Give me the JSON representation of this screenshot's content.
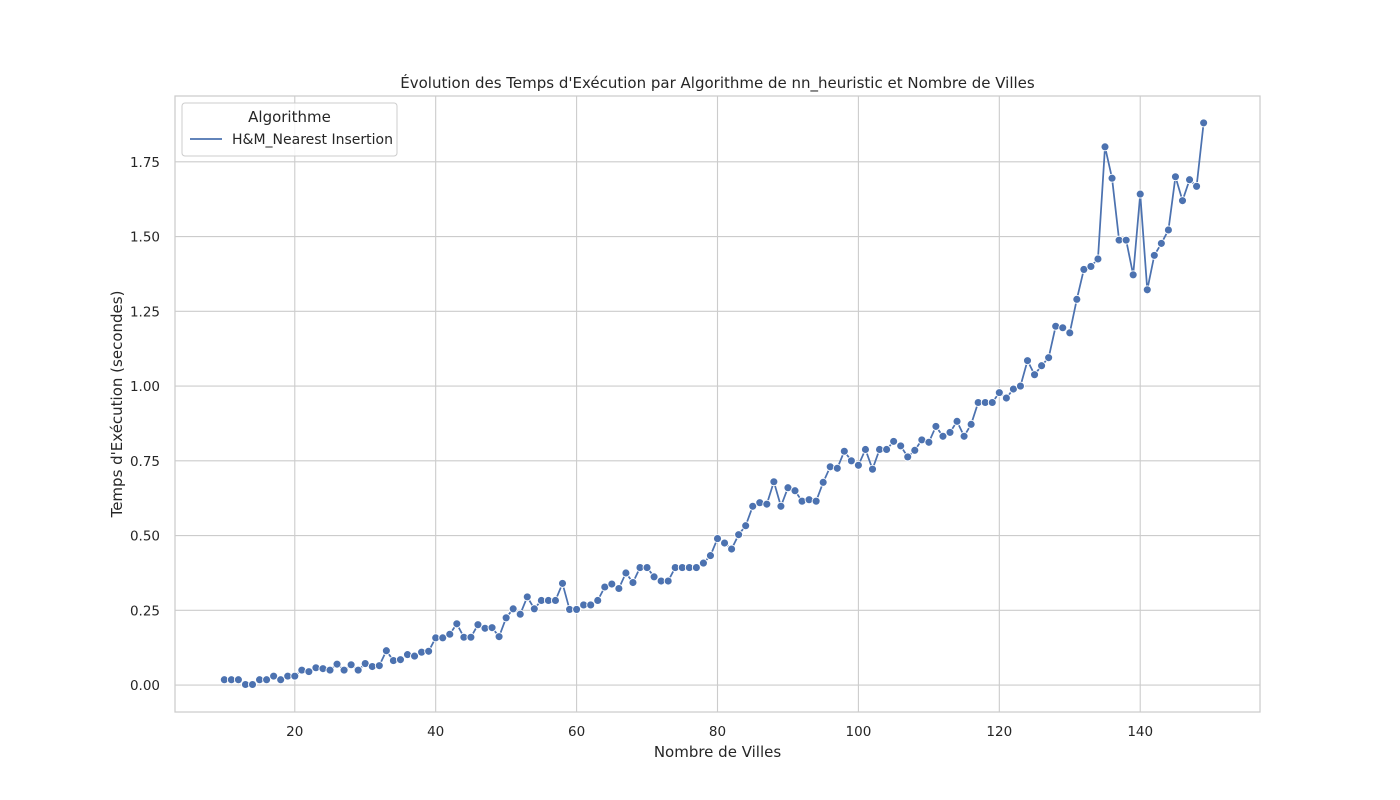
{
  "chart_data": {
    "type": "line",
    "title": "Évolution des Temps d'Exécution par Algorithme de nn_heuristic et Nombre de Villes",
    "xlabel": "Nombre de Villes",
    "ylabel": "Temps d'Exécution (secondes)",
    "xlim": [
      3,
      157
    ],
    "ylim": [
      -0.09,
      1.97
    ],
    "xticks": [
      20,
      40,
      60,
      80,
      100,
      120,
      140
    ],
    "yticks": [
      0.0,
      0.25,
      0.5,
      0.75,
      1.0,
      1.25,
      1.5,
      1.75
    ],
    "ytick_labels": [
      "0.00",
      "0.25",
      "0.50",
      "0.75",
      "1.00",
      "1.25",
      "1.50",
      "1.75"
    ],
    "grid": true,
    "legend": {
      "title": "Algorithme",
      "position": "top-left"
    },
    "series_color": "#4c72b0",
    "series": [
      {
        "name": "H&M_Nearest Insertion",
        "x": [
          10,
          11,
          12,
          13,
          14,
          15,
          16,
          17,
          18,
          19,
          20,
          21,
          22,
          23,
          24,
          25,
          26,
          27,
          28,
          29,
          30,
          31,
          32,
          33,
          34,
          35,
          36,
          37,
          38,
          39,
          40,
          41,
          42,
          43,
          44,
          45,
          46,
          47,
          48,
          49,
          50,
          51,
          52,
          53,
          54,
          55,
          56,
          57,
          58,
          59,
          60,
          61,
          62,
          63,
          64,
          65,
          66,
          67,
          68,
          69,
          70,
          71,
          72,
          73,
          74,
          75,
          76,
          77,
          78,
          79,
          80,
          81,
          82,
          83,
          84,
          85,
          86,
          87,
          88,
          89,
          90,
          91,
          92,
          93,
          94,
          95,
          96,
          97,
          98,
          99,
          100,
          101,
          102,
          103,
          104,
          105,
          106,
          107,
          108,
          109,
          110,
          111,
          112,
          113,
          114,
          115,
          116,
          117,
          118,
          119,
          120,
          121,
          122,
          123,
          124,
          125,
          126,
          127,
          128,
          129,
          130,
          131,
          132,
          133,
          134,
          135,
          136,
          137,
          138,
          139,
          140,
          141,
          142,
          143,
          144,
          145,
          146,
          147,
          148,
          149
        ],
        "values": [
          0.018,
          0.018,
          0.018,
          0.002,
          0.002,
          0.018,
          0.018,
          0.03,
          0.018,
          0.03,
          0.03,
          0.05,
          0.045,
          0.058,
          0.055,
          0.05,
          0.07,
          0.05,
          0.068,
          0.05,
          0.072,
          0.062,
          0.065,
          0.115,
          0.082,
          0.085,
          0.102,
          0.097,
          0.11,
          0.113,
          0.158,
          0.158,
          0.17,
          0.205,
          0.16,
          0.16,
          0.202,
          0.19,
          0.192,
          0.162,
          0.225,
          0.255,
          0.237,
          0.295,
          0.255,
          0.283,
          0.283,
          0.283,
          0.34,
          0.253,
          0.253,
          0.268,
          0.268,
          0.283,
          0.328,
          0.338,
          0.323,
          0.375,
          0.343,
          0.393,
          0.393,
          0.362,
          0.348,
          0.348,
          0.393,
          0.393,
          0.393,
          0.393,
          0.408,
          0.433,
          0.49,
          0.475,
          0.455,
          0.503,
          0.533,
          0.598,
          0.61,
          0.605,
          0.68,
          0.598,
          0.66,
          0.65,
          0.615,
          0.62,
          0.615,
          0.678,
          0.73,
          0.725,
          0.782,
          0.75,
          0.735,
          0.788,
          0.722,
          0.788,
          0.788,
          0.815,
          0.8,
          0.763,
          0.785,
          0.82,
          0.812,
          0.865,
          0.832,
          0.845,
          0.882,
          0.832,
          0.872,
          0.945,
          0.945,
          0.945,
          0.978,
          0.96,
          0.99,
          1.0,
          1.085,
          1.038,
          1.068,
          1.095,
          1.2,
          1.195,
          1.178,
          1.29,
          1.39,
          1.4,
          1.425,
          1.8,
          1.695,
          1.488,
          1.488,
          1.372,
          1.642,
          1.322,
          1.437,
          1.477,
          1.522,
          1.7,
          1.62,
          1.69,
          1.668,
          1.88
        ]
      }
    ]
  }
}
